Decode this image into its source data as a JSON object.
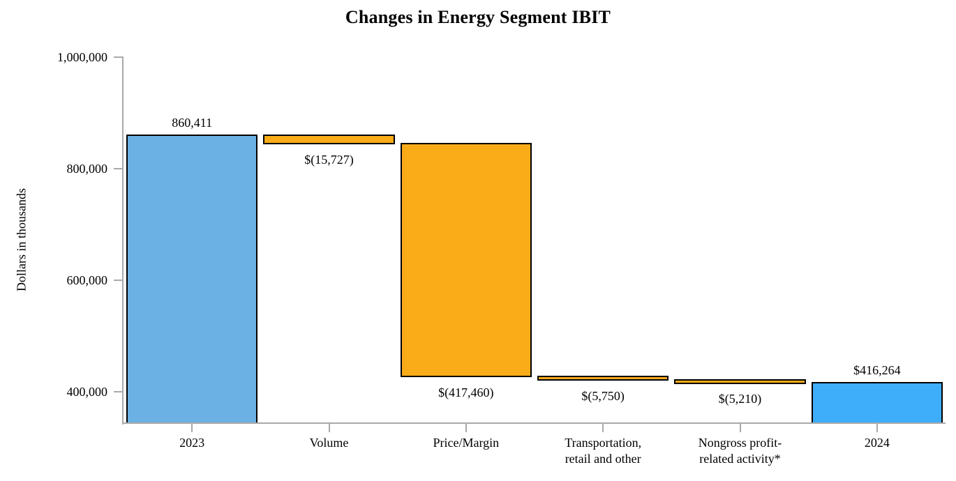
{
  "chart_data": {
    "type": "bar",
    "variant": "waterfall",
    "title": "Changes in Energy Segment IBIT",
    "xlabel": "",
    "ylabel": "Dollars in thousands",
    "ylim": [
      343750,
      1000000
    ],
    "grid": false,
    "legend": false,
    "axis_color": "#a9a9a9",
    "bar_border_color": "#000000",
    "yticks": [
      {
        "value": 1000000,
        "label": "1,000,000"
      },
      {
        "value": 800000,
        "label": "800,000"
      },
      {
        "value": 600000,
        "label": "600,000"
      },
      {
        "value": 400000,
        "label": "400,000"
      }
    ],
    "bars": [
      {
        "category_lines": [
          "2023"
        ],
        "kind": "total",
        "value": 860411,
        "start": 0,
        "end": 860411,
        "data_label": "860,411",
        "label_position": "above",
        "color": "#6bb1e3"
      },
      {
        "category_lines": [
          "Volume"
        ],
        "kind": "decrease",
        "value": -15727,
        "start": 860411,
        "end": 844684,
        "data_label": "$(15,727)",
        "label_position": "below",
        "color": "#f9ab18"
      },
      {
        "category_lines": [
          "Price/Margin"
        ],
        "kind": "decrease",
        "value": -417460,
        "start": 844684,
        "end": 427224,
        "data_label": "$(417,460)",
        "label_position": "below",
        "color": "#f9ab18"
      },
      {
        "category_lines": [
          "Transportation,",
          "retail and other"
        ],
        "kind": "decrease",
        "value": -5750,
        "start": 427224,
        "end": 421474,
        "data_label": "$(5,750)",
        "label_position": "below",
        "color": "#f9ab18"
      },
      {
        "category_lines": [
          "Nongross profit-",
          "related activity*"
        ],
        "kind": "decrease",
        "value": -5210,
        "start": 421474,
        "end": 416264,
        "data_label": "$(5,210)",
        "label_position": "below",
        "color": "#f9ab18"
      },
      {
        "category_lines": [
          "2024"
        ],
        "kind": "total",
        "value": 416264,
        "start": 0,
        "end": 416264,
        "data_label": "$416,264",
        "label_position": "above",
        "color": "#3faefa"
      }
    ]
  }
}
